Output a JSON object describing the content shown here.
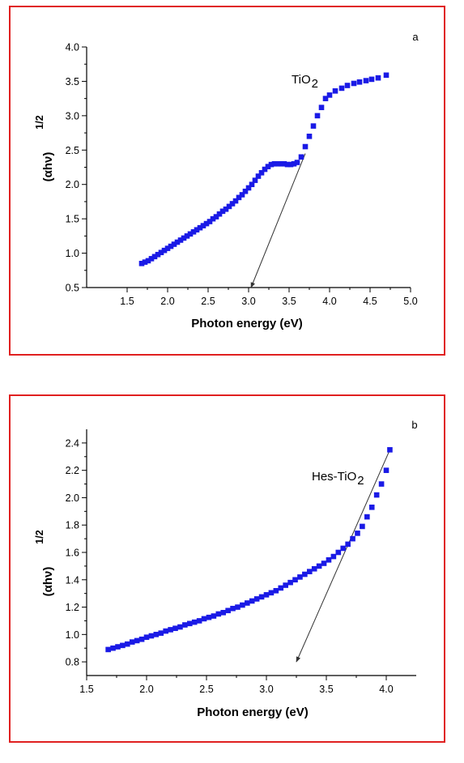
{
  "chart_data": [
    {
      "type": "scatter",
      "panel_label": "a",
      "series_label": "TiO",
      "series_label_sub": "2",
      "xlabel": "Photon energy (eV)",
      "ylabel": "(αhν)",
      "ylabel_sup": "1/2",
      "xlim": [
        1.0,
        5.0
      ],
      "ylim": [
        0.5,
        4.0
      ],
      "xticks": [
        1.5,
        2.0,
        2.5,
        3.0,
        3.5,
        4.0,
        4.5,
        5.0
      ],
      "xtick_labels": [
        "1.5",
        "2.0",
        "2.5",
        "3.0",
        "3.5",
        "4.0",
        "4.5",
        "5.0"
      ],
      "yticks": [
        0.5,
        1.0,
        1.5,
        2.0,
        2.5,
        3.0,
        3.5,
        4.0
      ],
      "ytick_labels": [
        "0.5",
        "1.0",
        "1.5",
        "2.0",
        "2.5",
        "3.0",
        "3.5",
        "4.0"
      ],
      "marker_color": "#1a1ae6",
      "x": [
        1.68,
        1.72,
        1.76,
        1.8,
        1.84,
        1.88,
        1.92,
        1.96,
        2.0,
        2.04,
        2.08,
        2.12,
        2.16,
        2.2,
        2.24,
        2.28,
        2.32,
        2.36,
        2.4,
        2.44,
        2.48,
        2.52,
        2.56,
        2.6,
        2.64,
        2.68,
        2.72,
        2.76,
        2.8,
        2.84,
        2.88,
        2.92,
        2.96,
        3.0,
        3.04,
        3.08,
        3.12,
        3.16,
        3.2,
        3.24,
        3.28,
        3.32,
        3.36,
        3.4,
        3.44,
        3.48,
        3.52,
        3.56,
        3.6,
        3.65,
        3.7,
        3.75,
        3.8,
        3.85,
        3.9,
        3.95,
        4.0,
        4.07,
        4.15,
        4.22,
        4.3,
        4.37,
        4.45,
        4.52,
        4.6,
        4.7
      ],
      "y": [
        0.85,
        0.87,
        0.89,
        0.92,
        0.95,
        0.98,
        1.01,
        1.04,
        1.07,
        1.1,
        1.13,
        1.16,
        1.19,
        1.22,
        1.25,
        1.28,
        1.31,
        1.34,
        1.37,
        1.4,
        1.43,
        1.46,
        1.5,
        1.53,
        1.57,
        1.61,
        1.64,
        1.68,
        1.72,
        1.76,
        1.81,
        1.85,
        1.9,
        1.95,
        2.0,
        2.06,
        2.12,
        2.17,
        2.22,
        2.26,
        2.29,
        2.3,
        2.3,
        2.3,
        2.3,
        2.29,
        2.29,
        2.3,
        2.32,
        2.4,
        2.55,
        2.7,
        2.85,
        3.0,
        3.12,
        3.25,
        3.3,
        3.36,
        3.4,
        3.44,
        3.47,
        3.49,
        3.51,
        3.53,
        3.55,
        3.59
      ],
      "fit_line": {
        "x": [
          3.7,
          3.03
        ],
        "y": [
          2.45,
          0.5
        ]
      }
    },
    {
      "type": "scatter",
      "panel_label": "b",
      "series_label": "Hes-TiO",
      "series_label_sub": "2",
      "xlabel": "Photon energy (eV)",
      "ylabel": "(αhν)",
      "ylabel_sup": "1/2",
      "xlim": [
        1.5,
        4.25
      ],
      "ylim": [
        0.7,
        2.5
      ],
      "xticks": [
        1.5,
        2.0,
        2.5,
        3.0,
        3.5,
        4.0
      ],
      "xtick_labels": [
        "1.5",
        "2.0",
        "2.5",
        "3.0",
        "3.5",
        "4.0"
      ],
      "yticks": [
        0.8,
        1.0,
        1.2,
        1.4,
        1.6,
        1.8,
        2.0,
        2.2,
        2.4
      ],
      "ytick_labels": [
        "0.8",
        "1.0",
        "1.2",
        "1.4",
        "1.6",
        "1.8",
        "2.0",
        "2.2",
        "2.4"
      ],
      "marker_color": "#1a1ae6",
      "x": [
        1.68,
        1.72,
        1.76,
        1.8,
        1.84,
        1.88,
        1.92,
        1.96,
        2.0,
        2.04,
        2.08,
        2.12,
        2.16,
        2.2,
        2.24,
        2.28,
        2.32,
        2.36,
        2.4,
        2.44,
        2.48,
        2.52,
        2.56,
        2.6,
        2.64,
        2.68,
        2.72,
        2.76,
        2.8,
        2.84,
        2.88,
        2.92,
        2.96,
        3.0,
        3.04,
        3.08,
        3.12,
        3.16,
        3.2,
        3.24,
        3.28,
        3.32,
        3.36,
        3.4,
        3.44,
        3.48,
        3.52,
        3.56,
        3.6,
        3.64,
        3.68,
        3.72,
        3.76,
        3.8,
        3.84,
        3.88,
        3.92,
        3.96,
        4.0,
        4.03
      ],
      "y": [
        0.89,
        0.9,
        0.91,
        0.92,
        0.93,
        0.945,
        0.955,
        0.965,
        0.98,
        0.99,
        1.0,
        1.01,
        1.025,
        1.035,
        1.045,
        1.055,
        1.07,
        1.08,
        1.09,
        1.1,
        1.115,
        1.125,
        1.135,
        1.15,
        1.16,
        1.175,
        1.19,
        1.2,
        1.215,
        1.23,
        1.245,
        1.26,
        1.275,
        1.29,
        1.305,
        1.32,
        1.34,
        1.36,
        1.38,
        1.4,
        1.42,
        1.44,
        1.46,
        1.48,
        1.5,
        1.52,
        1.545,
        1.57,
        1.6,
        1.63,
        1.66,
        1.7,
        1.74,
        1.79,
        1.86,
        1.93,
        2.02,
        2.1,
        2.2,
        2.35
      ],
      "fit_line": {
        "x": [
          4.03,
          3.25
        ],
        "y": [
          2.35,
          0.8
        ]
      }
    }
  ]
}
